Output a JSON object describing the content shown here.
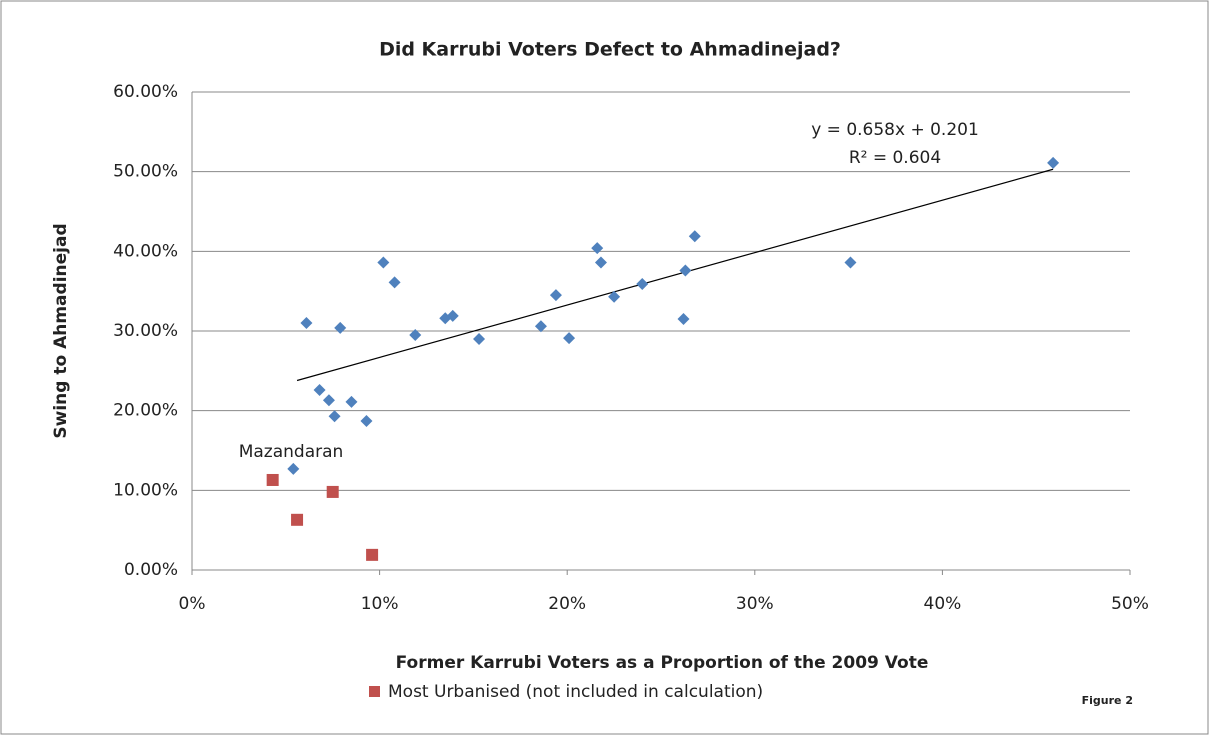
{
  "chart_data": {
    "type": "scatter",
    "title": "Did Karrubi Voters Defect to Ahmadinejad?",
    "x_label": "Former Karrubi Voters as a Proportion of the 2009 Vote",
    "y_label": "Swing to Ahmadinejad",
    "xlim": [
      0,
      50
    ],
    "xticks": [
      {
        "value": 0,
        "label": "0%"
      },
      {
        "value": 10,
        "label": "10%"
      },
      {
        "value": 20,
        "label": "20%"
      },
      {
        "value": 30,
        "label": "30%"
      },
      {
        "value": 40,
        "label": "40%"
      },
      {
        "value": 50,
        "label": "50%"
      }
    ],
    "ylim": [
      0,
      60
    ],
    "yticks": [
      {
        "value": 0,
        "label": "0.00%"
      },
      {
        "value": 10,
        "label": "10.00%"
      },
      {
        "value": 20,
        "label": "20.00%"
      },
      {
        "value": 30,
        "label": "30.00%"
      },
      {
        "value": 40,
        "label": "40.00%"
      },
      {
        "value": 50,
        "label": "50.00%"
      },
      {
        "value": 60,
        "label": "60.00%"
      }
    ],
    "grid": true,
    "series": [
      {
        "color": "#4f81bd",
        "marker": "diamond",
        "x": [
          6.1,
          5.4,
          6.8,
          7.3,
          7.6,
          7.9,
          8.5,
          9.3,
          10.2,
          10.8,
          11.9,
          13.5,
          13.9,
          15.3,
          18.6,
          19.4,
          20.1,
          21.6,
          21.8,
          22.5,
          24.0,
          26.2,
          26.3,
          26.8,
          35.1,
          45.9
        ],
        "values": [
          31.0,
          12.7,
          22.6,
          21.3,
          19.3,
          30.4,
          21.1,
          18.7,
          38.6,
          36.1,
          29.5,
          31.6,
          31.9,
          29.0,
          30.6,
          34.5,
          29.1,
          40.4,
          38.6,
          34.3,
          35.9,
          31.5,
          37.6,
          41.9,
          38.6,
          51.1
        ]
      },
      {
        "name": "Most Urbanised (not included in calculation)",
        "color": "#c0504d",
        "marker": "square",
        "x": [
          4.3,
          5.6,
          7.5,
          9.6
        ],
        "values": [
          11.3,
          6.3,
          9.8,
          1.9
        ]
      }
    ],
    "trendline": {
      "slope": 0.658,
      "intercept": 20.1,
      "x": [
        5.6,
        45.9
      ],
      "color": "#000000",
      "equation": "y = 0.658x + 0.201",
      "r_squared": "R² = 0.604"
    },
    "annotations": [
      "Mazandaran",
      "Figure 2"
    ]
  }
}
